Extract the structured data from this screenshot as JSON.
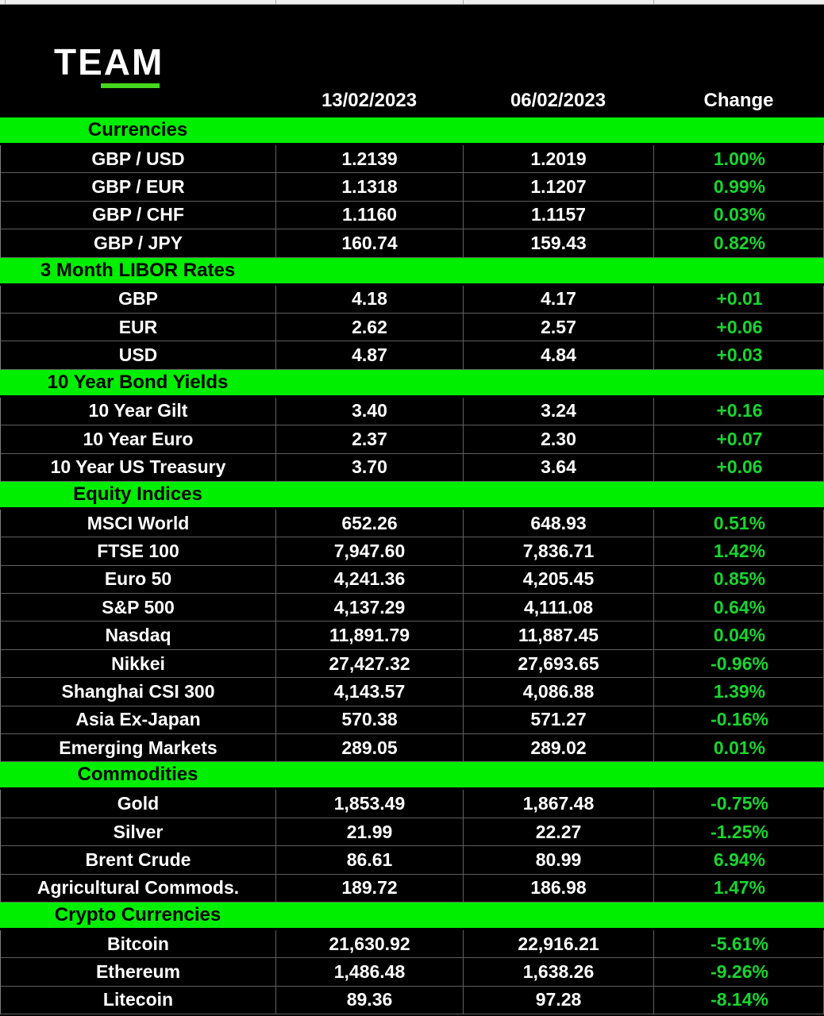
{
  "logo": {
    "text": "TEAM",
    "underline_color": "#45d81e"
  },
  "colors": {
    "section_band_green": "#00ef00",
    "change_text_green": "#16d62e",
    "background": "#000000",
    "grid_line": "#5f5f5f"
  },
  "chart_data": {
    "type": "table",
    "title": "TEAM weekly market data",
    "columns": [
      "",
      "13/02/2023",
      "06/02/2023",
      "Change"
    ],
    "sections": [
      {
        "title": "Currencies",
        "rows": [
          {
            "label": "GBP / USD",
            "current": "1.2139",
            "previous": "1.2019",
            "change": "1.00%"
          },
          {
            "label": "GBP / EUR",
            "current": "1.1318",
            "previous": "1.1207",
            "change": "0.99%"
          },
          {
            "label": "GBP / CHF",
            "current": "1.1160",
            "previous": "1.1157",
            "change": "0.03%"
          },
          {
            "label": "GBP / JPY",
            "current": "160.74",
            "previous": "159.43",
            "change": "0.82%"
          }
        ]
      },
      {
        "title": "3 Month LIBOR Rates",
        "rows": [
          {
            "label": "GBP",
            "current": "4.18",
            "previous": "4.17",
            "change": "+0.01"
          },
          {
            "label": "EUR",
            "current": "2.62",
            "previous": "2.57",
            "change": "+0.06"
          },
          {
            "label": "USD",
            "current": "4.87",
            "previous": "4.84",
            "change": "+0.03"
          }
        ]
      },
      {
        "title": "10 Year Bond Yields",
        "rows": [
          {
            "label": "10 Year Gilt",
            "current": "3.40",
            "previous": "3.24",
            "change": "+0.16"
          },
          {
            "label": "10 Year Euro",
            "current": "2.37",
            "previous": "2.30",
            "change": "+0.07"
          },
          {
            "label": "10 Year US Treasury",
            "current": "3.70",
            "previous": "3.64",
            "change": "+0.06"
          }
        ]
      },
      {
        "title": "Equity Indices",
        "rows": [
          {
            "label": "MSCI World",
            "current": "652.26",
            "previous": "648.93",
            "change": "0.51%"
          },
          {
            "label": "FTSE 100",
            "current": "7,947.60",
            "previous": "7,836.71",
            "change": "1.42%"
          },
          {
            "label": "Euro 50",
            "current": "4,241.36",
            "previous": "4,205.45",
            "change": "0.85%"
          },
          {
            "label": "S&P 500",
            "current": "4,137.29",
            "previous": "4,111.08",
            "change": "0.64%"
          },
          {
            "label": "Nasdaq",
            "current": "11,891.79",
            "previous": "11,887.45",
            "change": "0.04%"
          },
          {
            "label": "Nikkei",
            "current": "27,427.32",
            "previous": "27,693.65",
            "change": "-0.96%"
          },
          {
            "label": "Shanghai CSI 300",
            "current": "4,143.57",
            "previous": "4,086.88",
            "change": "1.39%"
          },
          {
            "label": "Asia Ex-Japan",
            "current": "570.38",
            "previous": "571.27",
            "change": "-0.16%"
          },
          {
            "label": "Emerging Markets",
            "current": "289.05",
            "previous": "289.02",
            "change": "0.01%"
          }
        ]
      },
      {
        "title": "Commodities",
        "rows": [
          {
            "label": "Gold",
            "current": "1,853.49",
            "previous": "1,867.48",
            "change": "-0.75%"
          },
          {
            "label": "Silver",
            "current": "21.99",
            "previous": "22.27",
            "change": "-1.25%"
          },
          {
            "label": "Brent Crude",
            "current": "86.61",
            "previous": "80.99",
            "change": "6.94%"
          },
          {
            "label": "Agricultural Commods.",
            "current": "189.72",
            "previous": "186.98",
            "change": "1.47%"
          }
        ]
      },
      {
        "title": "Crypto Currencies",
        "rows": [
          {
            "label": "Bitcoin",
            "current": "21,630.92",
            "previous": "22,916.21",
            "change": "-5.61%"
          },
          {
            "label": "Ethereum",
            "current": "1,486.48",
            "previous": "1,638.26",
            "change": "-9.26%"
          },
          {
            "label": "Litecoin",
            "current": "89.36",
            "previous": "97.28",
            "change": "-8.14%"
          }
        ]
      }
    ]
  }
}
